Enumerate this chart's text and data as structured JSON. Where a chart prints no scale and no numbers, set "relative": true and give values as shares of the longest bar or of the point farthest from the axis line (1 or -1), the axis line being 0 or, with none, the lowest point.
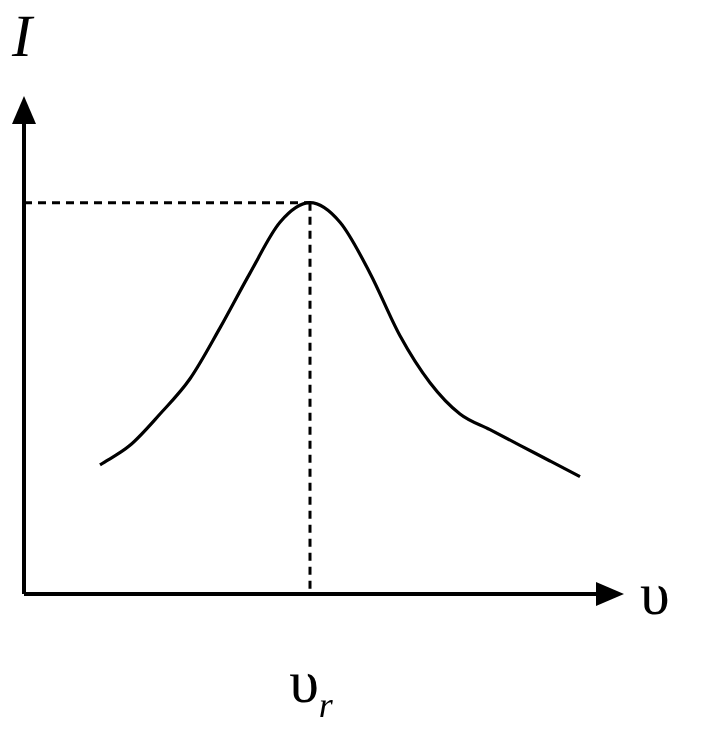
{
  "chart_data": {
    "type": "line",
    "relative": true,
    "xlabel": "υ",
    "ylabel": "I",
    "categories": [
      null,
      null,
      null,
      null,
      null,
      null,
      null,
      null,
      null,
      null,
      null,
      null,
      null,
      null,
      null,
      null,
      null
    ],
    "series": [
      {
        "color": "#000000",
        "values": [
          0.33,
          0.38,
          0.46,
          0.55,
          0.68,
          0.82,
          0.95,
          1,
          0.95,
          0.82,
          0.66,
          0.54,
          0.46,
          0.42,
          0.38,
          0.34,
          0.3
        ]
      }
    ],
    "ref_lines": [
      {
        "axis": "y",
        "value": 1,
        "line_style": "dashed",
        "color": "#000000"
      }
    ],
    "annotations": [
      "υ$_{r}$"
    ],
    "marker": "none",
    "line_style": "solid"
  }
}
